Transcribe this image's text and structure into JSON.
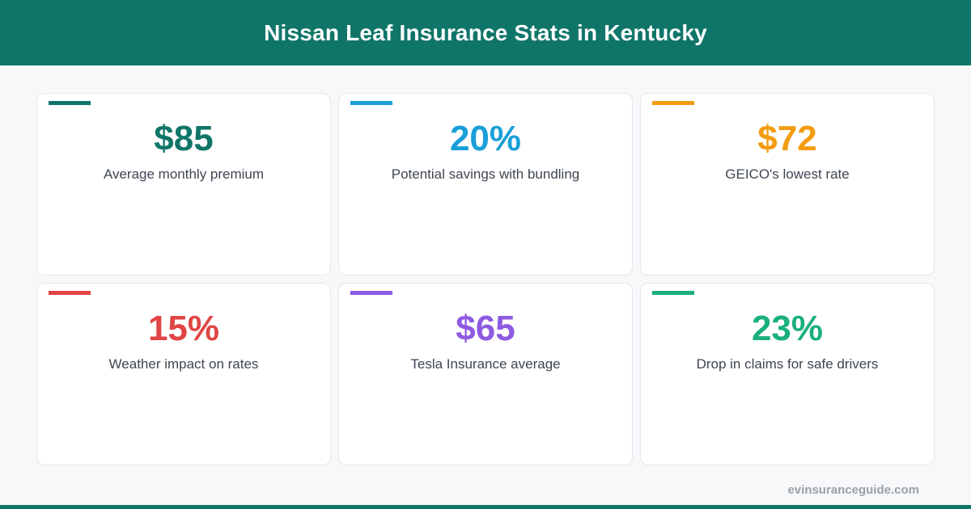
{
  "header": {
    "title": "Nissan Leaf Insurance Stats in Kentucky",
    "background_color": "#107569"
  },
  "stats": [
    {
      "value": "$85",
      "label": "Average monthly premium",
      "color": "#107569"
    },
    {
      "value": "20%",
      "label": "Potential savings with bundling",
      "color": "#1a9fd9"
    },
    {
      "value": "$72",
      "label": "GEICO's lowest rate",
      "color": "#f39c12"
    },
    {
      "value": "15%",
      "label": "Weather impact on rates",
      "color": "#e04545"
    },
    {
      "value": "$65",
      "label": "Tesla Insurance average",
      "color": "#8e5ae2"
    },
    {
      "value": "23%",
      "label": "Drop in claims for safe drivers",
      "color": "#1aaf7e"
    }
  ],
  "footer": {
    "domain": "evinsuranceguide.com"
  }
}
